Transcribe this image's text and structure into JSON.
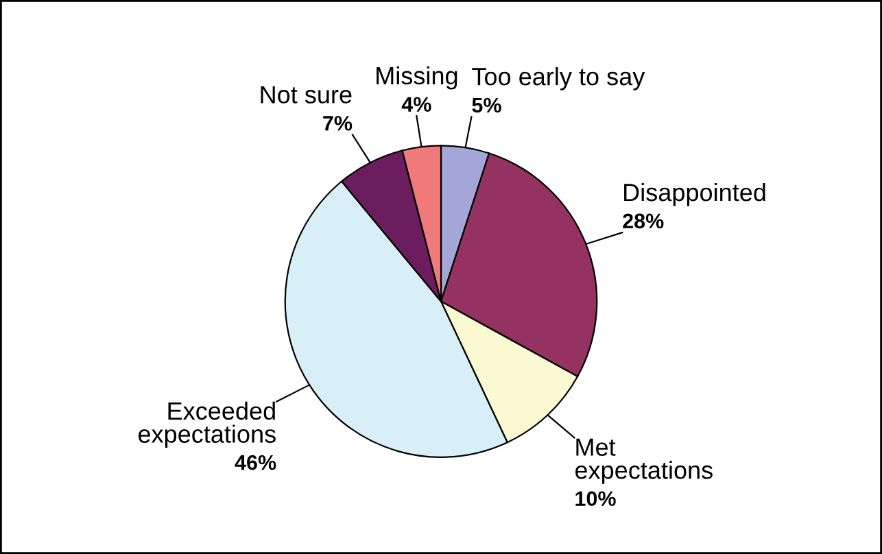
{
  "chart_data": {
    "type": "pie",
    "categories": [
      "Too early to say",
      "Disappointed",
      "Met\nexpectations",
      "Exceeded\nexpectations",
      "Not sure",
      "Missing"
    ],
    "values": [
      5,
      28,
      10,
      46,
      7,
      4
    ],
    "colors": [
      "#a3a6d6",
      "#943262",
      "#fbf9d2",
      "#d8eff7",
      "#6b1d5e",
      "#f07a7a"
    ],
    "value_labels": [
      "5%",
      "28%",
      "10%",
      "46%",
      "7%",
      "4%"
    ]
  }
}
